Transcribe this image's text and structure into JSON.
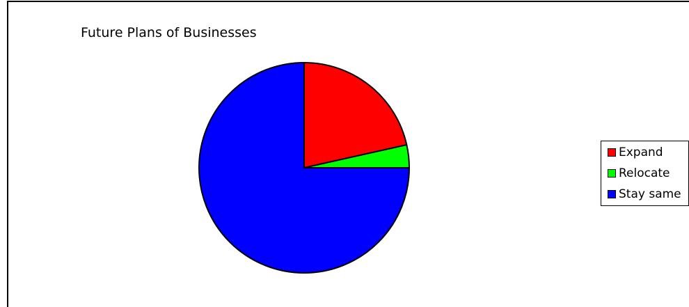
{
  "chart_data": {
    "type": "pie",
    "title": "Future Plans of Businesses",
    "legend_position": "right",
    "slices": [
      {
        "label": "Expand",
        "value": 21.5,
        "color": "#ff0000"
      },
      {
        "label": "Relocate",
        "value": 3.5,
        "color": "#00ff00"
      },
      {
        "label": "Stay same",
        "value": 75.0,
        "color": "#0000ff"
      }
    ]
  }
}
